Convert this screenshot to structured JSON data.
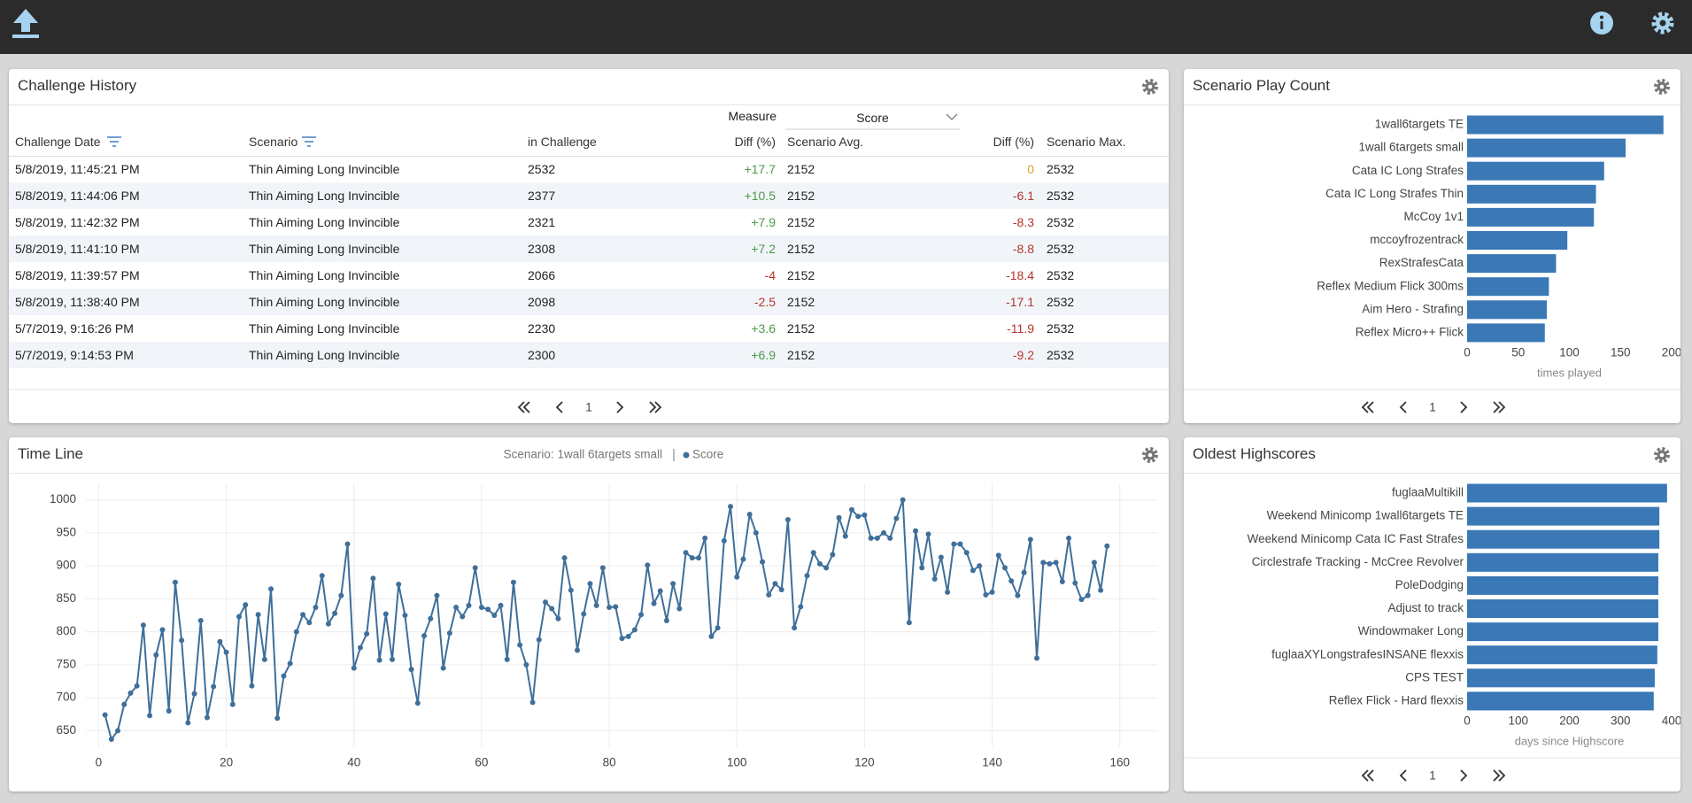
{
  "challenge_history": {
    "title": "Challenge History",
    "measure_label": "Measure",
    "measure_value": "Score",
    "columns": [
      "Challenge Date",
      "Scenario",
      "in Challenge",
      "Diff (%)",
      "Scenario Avg.",
      "Diff (%)",
      "Scenario Max."
    ],
    "rows": [
      [
        "5/8/2019, 11:45:21 PM",
        "Thin Aiming Long Invincible",
        "2532",
        "+17.7",
        "2152",
        "0",
        "2532"
      ],
      [
        "5/8/2019, 11:44:06 PM",
        "Thin Aiming Long Invincible",
        "2377",
        "+10.5",
        "2152",
        "-6.1",
        "2532"
      ],
      [
        "5/8/2019, 11:42:32 PM",
        "Thin Aiming Long Invincible",
        "2321",
        "+7.9",
        "2152",
        "-8.3",
        "2532"
      ],
      [
        "5/8/2019, 11:41:10 PM",
        "Thin Aiming Long Invincible",
        "2308",
        "+7.2",
        "2152",
        "-8.8",
        "2532"
      ],
      [
        "5/8/2019, 11:39:57 PM",
        "Thin Aiming Long Invincible",
        "2066",
        "-4",
        "2152",
        "-18.4",
        "2532"
      ],
      [
        "5/8/2019, 11:38:40 PM",
        "Thin Aiming Long Invincible",
        "2098",
        "-2.5",
        "2152",
        "-17.1",
        "2532"
      ],
      [
        "5/7/2019, 9:16:26 PM",
        "Thin Aiming Long Invincible",
        "2230",
        "+3.6",
        "2152",
        "-11.9",
        "2532"
      ],
      [
        "5/7/2019, 9:14:53 PM",
        "Thin Aiming Long Invincible",
        "2300",
        "+6.9",
        "2152",
        "-9.2",
        "2532"
      ]
    ],
    "page": 1
  },
  "chart_data": [
    {
      "type": "bar",
      "orientation": "horizontal",
      "title": "Scenario Play Count",
      "x_label": "times played",
      "color": "#3a78b6",
      "categories": [
        "1wall6targets TE",
        "1wall 6targets small",
        "Cata IC Long Strafes",
        "Cata IC Long Strafes Thin",
        "McCoy 1v1",
        "mccoyfrozentrack",
        "RexStrafesCata",
        "Reflex Medium Flick 300ms",
        "Aim Hero - Strafing",
        "Reflex Micro++ Flick"
      ],
      "values": [
        192,
        155,
        134,
        126,
        124,
        98,
        87,
        80,
        78,
        76
      ],
      "xlim": [
        0,
        200
      ],
      "xticks": [
        0,
        50,
        100,
        150,
        200
      ],
      "page": 1
    },
    {
      "type": "line",
      "title": "Time Line",
      "subtitle": "Scenario: 1wall 6targets small",
      "grid": true,
      "x": [
        1,
        2,
        3,
        4,
        5,
        6,
        7,
        8,
        9,
        10,
        11,
        12,
        13,
        14,
        15,
        16,
        17,
        18,
        19,
        20,
        21,
        22,
        23,
        24,
        25,
        26,
        27,
        28,
        29,
        30,
        31,
        32,
        33,
        34,
        35,
        36,
        37,
        38,
        39,
        40,
        41,
        42,
        43,
        44,
        45,
        46,
        47,
        48,
        49,
        50,
        51,
        52,
        53,
        54,
        55,
        56,
        57,
        58,
        59,
        60,
        61,
        62,
        63,
        64,
        65,
        66,
        67,
        68,
        69,
        70,
        71,
        72,
        73,
        74,
        75,
        76,
        77,
        78,
        79,
        80,
        81,
        82,
        83,
        84,
        85,
        86,
        87,
        88,
        89,
        90,
        91,
        92,
        93,
        94,
        95,
        96,
        97,
        98,
        99,
        100,
        101,
        102,
        103,
        104,
        105,
        106,
        107,
        108,
        109,
        110,
        111,
        112,
        113,
        114,
        115,
        116,
        117,
        118,
        119,
        120,
        121,
        122,
        123,
        124,
        125,
        126,
        127,
        128,
        129,
        130,
        131,
        132,
        133,
        134,
        135,
        136,
        137,
        138,
        139,
        140,
        141,
        142,
        143,
        144,
        145,
        146,
        147,
        148,
        149,
        150,
        151,
        152,
        153,
        154,
        155,
        156,
        157,
        158
      ],
      "series": [
        {
          "name": "Score",
          "color": "#3f6f9a",
          "values": [
            674,
            637,
            650,
            690,
            707,
            718,
            810,
            673,
            765,
            803,
            680,
            875,
            787,
            662,
            706,
            817,
            670,
            717,
            785,
            769,
            690,
            823,
            841,
            718,
            826,
            758,
            865,
            669,
            733,
            752,
            800,
            826,
            814,
            837,
            885,
            812,
            828,
            855,
            933,
            745,
            776,
            797,
            881,
            757,
            827,
            758,
            872,
            825,
            743,
            692,
            794,
            820,
            855,
            745,
            798,
            837,
            823,
            840,
            897,
            837,
            834,
            825,
            840,
            758,
            875,
            780,
            750,
            693,
            788,
            845,
            835,
            820,
            912,
            863,
            772,
            827,
            873,
            840,
            897,
            837,
            838,
            790,
            793,
            803,
            826,
            901,
            843,
            862,
            817,
            873,
            835,
            920,
            912,
            912,
            942,
            793,
            806,
            938,
            990,
            883,
            910,
            978,
            950,
            906,
            856,
            873,
            864,
            970,
            806,
            838,
            885,
            920,
            903,
            897,
            917,
            973,
            945,
            985,
            975,
            977,
            942,
            942,
            950,
            942,
            972,
            1000,
            814,
            953,
            897,
            948,
            880,
            913,
            860,
            933,
            933,
            920,
            893,
            900,
            856,
            860,
            916,
            897,
            877,
            855,
            890,
            940,
            760,
            905,
            903,
            905,
            876,
            942,
            874,
            849,
            855,
            905,
            863,
            930
          ]
        }
      ],
      "xlim": [
        -2,
        166
      ],
      "xticks": [
        0,
        20,
        40,
        60,
        80,
        100,
        120,
        140,
        160
      ],
      "ylim": [
        625,
        1025
      ],
      "yticks": [
        650,
        700,
        750,
        800,
        850,
        900,
        950,
        1000
      ]
    },
    {
      "type": "bar",
      "orientation": "horizontal",
      "title": "Oldest Highscores",
      "x_label": "days since Highscore",
      "color": "#3a78b6",
      "categories": [
        "fuglaaMultikill",
        "Weekend Minicomp 1wall6targets TE",
        "Weekend Minicomp Cata IC Fast Strafes",
        "Circlestrafe Tracking - McCree Revolver",
        "PoleDodging",
        "Adjust to track",
        "Windowmaker Long",
        "fuglaaXYLongstrafesINSANE flexxis",
        "CPS TEST",
        "Reflex Flick - Hard flexxis"
      ],
      "values": [
        391,
        376,
        376,
        374,
        374,
        374,
        374,
        372,
        367,
        365
      ],
      "xlim": [
        0,
        400
      ],
      "xticks": [
        0,
        100,
        200,
        300,
        400
      ],
      "page": 1
    }
  ]
}
